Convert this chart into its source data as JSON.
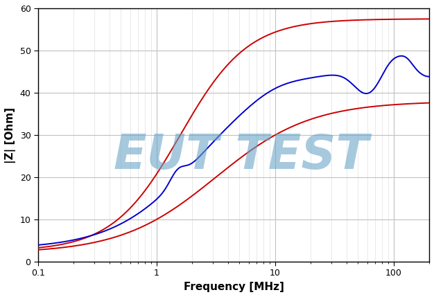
{
  "xlabel": "Frequency [MHz]",
  "ylabel": "|Z| [Ohm]",
  "watermark": "EUT TEST",
  "watermark_color": "#6BA5C8",
  "watermark_alpha": 0.6,
  "xmin": 0.1,
  "xmax": 200,
  "ymin": 0,
  "ymax": 60,
  "yticks": [
    0,
    10,
    20,
    30,
    40,
    50,
    60
  ],
  "line_red_color": "#CC0000",
  "line_blue_color": "#0000CC",
  "line_width": 1.4,
  "background_color": "#ffffff",
  "grid_major_color": "#c0c0c0",
  "grid_minor_color": "#d8d8d8"
}
